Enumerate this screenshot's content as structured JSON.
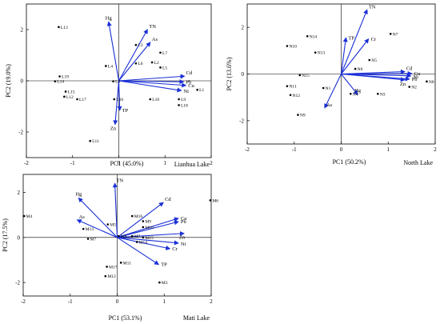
{
  "chart_data": [
    {
      "type": "scatter",
      "subtype": "pca-biplot",
      "xlabel": "PC1 (45.0%)",
      "ylabel": "PC2 (19.0%)",
      "lake": "Lianhua Lake",
      "xlim": [
        -2,
        2
      ],
      "ylim": [
        -3,
        3
      ],
      "xticks": [
        -2,
        -1,
        0,
        1,
        2
      ],
      "yticks": [
        -2,
        0,
        2
      ],
      "loadings": [
        {
          "name": "Hg",
          "x": -0.22,
          "y": 2.3
        },
        {
          "name": "TN",
          "x": 0.62,
          "y": 2.0
        },
        {
          "name": "As",
          "x": 0.68,
          "y": 1.5
        },
        {
          "name": "Cd",
          "x": 1.42,
          "y": 0.18
        },
        {
          "name": "Pb",
          "x": 1.4,
          "y": -0.04
        },
        {
          "name": "Cu",
          "x": 1.45,
          "y": -0.18
        },
        {
          "name": "Ni",
          "x": 1.35,
          "y": -0.38
        },
        {
          "name": "TP",
          "x": 0.02,
          "y": -1.15
        },
        {
          "name": "Zn",
          "x": -0.08,
          "y": -1.7
        }
      ],
      "scores": [
        {
          "label": "L13",
          "x": -1.3,
          "y": 2.1
        },
        {
          "label": "L3",
          "x": 0.37,
          "y": 1.4
        },
        {
          "label": "L7",
          "x": 0.9,
          "y": 1.1
        },
        {
          "label": "L2",
          "x": 0.72,
          "y": 0.72
        },
        {
          "label": "L5",
          "x": 0.9,
          "y": 0.52
        },
        {
          "label": "L6",
          "x": 0.37,
          "y": 0.68
        },
        {
          "label": "L4",
          "x": -0.28,
          "y": 0.58
        },
        {
          "label": "L19",
          "x": -1.28,
          "y": 0.17
        },
        {
          "label": "L14",
          "x": -1.38,
          "y": -0.02
        },
        {
          "label": "L15",
          "x": -1.15,
          "y": -0.42
        },
        {
          "label": "L12",
          "x": -1.18,
          "y": -0.62
        },
        {
          "label": "L17",
          "x": -0.9,
          "y": -0.72
        },
        {
          "label": "L8",
          "x": -0.12,
          "y": -0.02
        },
        {
          "label": "L1",
          "x": 1.7,
          "y": -0.35
        },
        {
          "label": "L9",
          "x": 1.3,
          "y": -0.72
        },
        {
          "label": "L18",
          "x": 1.3,
          "y": -0.95
        },
        {
          "label": "L10",
          "x": 0.68,
          "y": -0.72
        },
        {
          "label": "L16",
          "x": -0.1,
          "y": -0.72
        },
        {
          "label": "L11",
          "x": -0.62,
          "y": -2.35
        }
      ]
    },
    {
      "type": "scatter",
      "subtype": "pca-biplot",
      "xlabel": "PC1 (50.2%)",
      "ylabel": "PC2 (13.6%)",
      "lake": "North Lake",
      "xlim": [
        -2,
        2
      ],
      "ylim": [
        -3,
        3
      ],
      "xticks": [
        -2,
        -1,
        0,
        1,
        2
      ],
      "yticks": [
        -2,
        0,
        2
      ],
      "loadings": [
        {
          "name": "TN",
          "x": 0.55,
          "y": 2.75
        },
        {
          "name": "TP",
          "x": 0.1,
          "y": 1.55
        },
        {
          "name": "Cr",
          "x": 0.58,
          "y": 1.5
        },
        {
          "name": "Cd",
          "x": 1.35,
          "y": 0.1
        },
        {
          "name": "Cu",
          "x": 1.5,
          "y": 0.02
        },
        {
          "name": "Ni",
          "x": 1.48,
          "y": -0.08
        },
        {
          "name": "Pb",
          "x": 1.45,
          "y": -0.22
        },
        {
          "name": "Zn",
          "x": 1.35,
          "y": -0.25
        },
        {
          "name": "Hg",
          "x": 0.35,
          "y": -0.88
        },
        {
          "name": "As",
          "x": -0.35,
          "y": -1.45
        }
      ],
      "scores": [
        {
          "label": "N14",
          "x": -0.72,
          "y": 1.62
        },
        {
          "label": "N10",
          "x": -1.15,
          "y": 1.2
        },
        {
          "label": "N13",
          "x": -0.55,
          "y": 0.92
        },
        {
          "label": "N7",
          "x": 1.05,
          "y": 1.72
        },
        {
          "label": "N5",
          "x": 0.6,
          "y": 0.6
        },
        {
          "label": "N6",
          "x": 0.3,
          "y": 0.22
        },
        {
          "label": "N15",
          "x": -0.88,
          "y": -0.05
        },
        {
          "label": "N11",
          "x": -1.15,
          "y": -0.52
        },
        {
          "label": "N12",
          "x": -1.08,
          "y": -0.9
        },
        {
          "label": "N1",
          "x": -0.38,
          "y": -0.6
        },
        {
          "label": "N4",
          "x": 0.2,
          "y": -0.85
        },
        {
          "label": "N3",
          "x": 0.78,
          "y": -0.85
        },
        {
          "label": "N2",
          "x": 1.45,
          "y": -0.55
        },
        {
          "label": "N8",
          "x": 1.82,
          "y": -0.32
        },
        {
          "label": "N9",
          "x": -0.92,
          "y": -1.75
        }
      ]
    },
    {
      "type": "scatter",
      "subtype": "pca-biplot",
      "xlabel": "PC1 (53.1%)",
      "ylabel": "PC2 (17.5%)",
      "lake": "Mati Lake",
      "xlim": [
        -2,
        2
      ],
      "ylim": [
        -2.6,
        2.8
      ],
      "xticks": [
        -2,
        -1,
        0,
        1,
        2
      ],
      "yticks": [
        -2,
        0,
        2
      ],
      "loadings": [
        {
          "name": "TN",
          "x": -0.05,
          "y": 2.4
        },
        {
          "name": "Hg",
          "x": -0.82,
          "y": 1.75
        },
        {
          "name": "Cd",
          "x": 0.98,
          "y": 1.55
        },
        {
          "name": "As",
          "x": -0.85,
          "y": 0.78
        },
        {
          "name": "Cu",
          "x": 1.3,
          "y": 0.85
        },
        {
          "name": "Pb",
          "x": 1.3,
          "y": 0.7
        },
        {
          "name": "Zn",
          "x": 1.42,
          "y": 0.18
        },
        {
          "name": "Ni",
          "x": 1.3,
          "y": -0.25
        },
        {
          "name": "Cr",
          "x": 1.12,
          "y": -0.5
        },
        {
          "name": "TP",
          "x": 0.88,
          "y": -1.2
        }
      ],
      "scores": [
        {
          "label": "M6",
          "x": 1.98,
          "y": 1.65
        },
        {
          "label": "M4",
          "x": -1.98,
          "y": 0.95
        },
        {
          "label": "M16",
          "x": 0.32,
          "y": 0.95
        },
        {
          "label": "M9",
          "x": 0.55,
          "y": 0.72
        },
        {
          "label": "M5",
          "x": -0.2,
          "y": 0.58
        },
        {
          "label": "M10",
          "x": 0.55,
          "y": 0.46
        },
        {
          "label": "M13",
          "x": -0.72,
          "y": 0.38
        },
        {
          "label": "M8",
          "x": 0.03,
          "y": 0.06
        },
        {
          "label": "M2",
          "x": 0.32,
          "y": 0.06
        },
        {
          "label": "M15",
          "x": 0.55,
          "y": 0.0
        },
        {
          "label": "M14",
          "x": 0.42,
          "y": -0.2
        },
        {
          "label": "M7",
          "x": -0.62,
          "y": -0.06
        },
        {
          "label": "M11",
          "x": 0.08,
          "y": -1.12
        },
        {
          "label": "M17",
          "x": -0.22,
          "y": -1.3
        },
        {
          "label": "M12",
          "x": -0.25,
          "y": -1.72
        },
        {
          "label": "M3",
          "x": 0.9,
          "y": -2.0
        }
      ]
    }
  ]
}
